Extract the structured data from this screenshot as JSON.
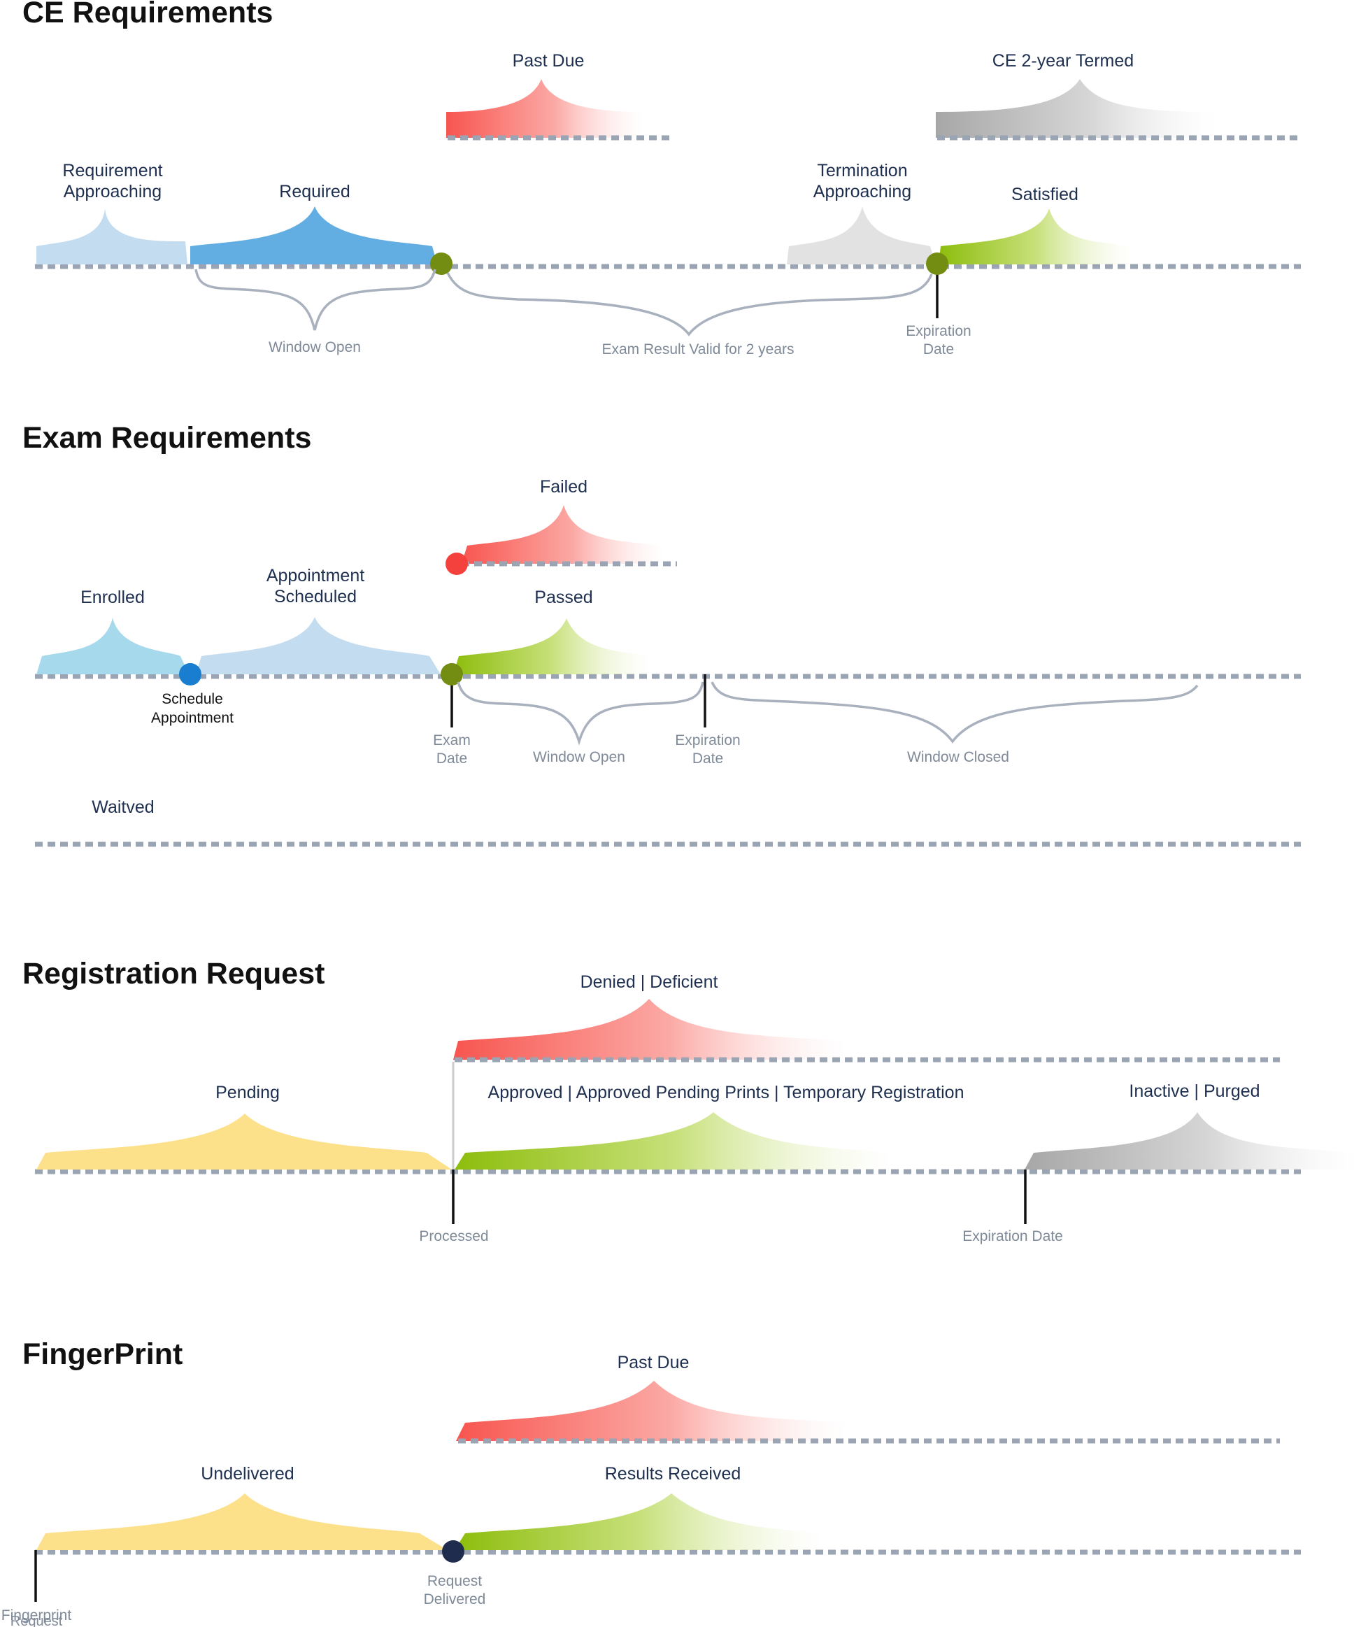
{
  "sections": {
    "ce": {
      "title": "CE Requirements",
      "states": {
        "past_due": "Past Due",
        "ce_termed": "CE 2-year Termed",
        "req_approaching_1": "Requirement",
        "req_approaching_2": "Approaching",
        "required": "Required",
        "term_approaching_1": "Termination",
        "term_approaching_2": "Approaching",
        "satisfied": "Satisfied"
      },
      "annotations": {
        "window_open": "Window Open",
        "exam_valid": "Exam Result Valid for 2 years",
        "expiration_1": "Expiration",
        "expiration_2": "Date"
      }
    },
    "exam": {
      "title": "Exam Requirements",
      "states": {
        "failed": "Failed",
        "enrolled": "Enrolled",
        "appt_1": "Appointment",
        "appt_2": "Scheduled",
        "passed": "Passed",
        "waived": "Waitved"
      },
      "annotations": {
        "schedule_1": "Schedule",
        "schedule_2": "Appointment",
        "exam_date_1": "Exam",
        "exam_date_2": "Date",
        "window_open": "Window Open",
        "expiration_1": "Expiration",
        "expiration_2": "Date",
        "window_closed": "Window Closed"
      }
    },
    "registration": {
      "title": "Registration Request",
      "states": {
        "denied": "Denied | Deficient",
        "pending": "Pending",
        "approved": "Approved | Approved Pending Prints | Temporary Registration",
        "inactive": "Inactive | Purged"
      },
      "annotations": {
        "processed": "Processed",
        "expiration": "Expiration Date"
      }
    },
    "fingerprint": {
      "title": "FingerPrint",
      "states": {
        "past_due": "Past Due",
        "undelivered": "Undelivered",
        "results": "Results Received"
      },
      "annotations": {
        "request_delivered_1": "Request",
        "request_delivered_2": "Delivered",
        "fp_request_1": "Fingerprint",
        "fp_request_2": "Request"
      }
    }
  },
  "colors": {
    "red": "#f8554f",
    "grey": "#a8a8a8",
    "light_blue": "#c3dcef",
    "blue": "#62aee2",
    "green": "#8fbf12",
    "light_grey": "#e2e2e2",
    "cyan": "#a6d9ec",
    "yellow": "#fde08a",
    "node_green": "#738c12",
    "node_blue": "#1a7ed0",
    "node_red": "#f5413d",
    "node_navy": "#1f2c4d",
    "track": "#9aa4b2"
  }
}
